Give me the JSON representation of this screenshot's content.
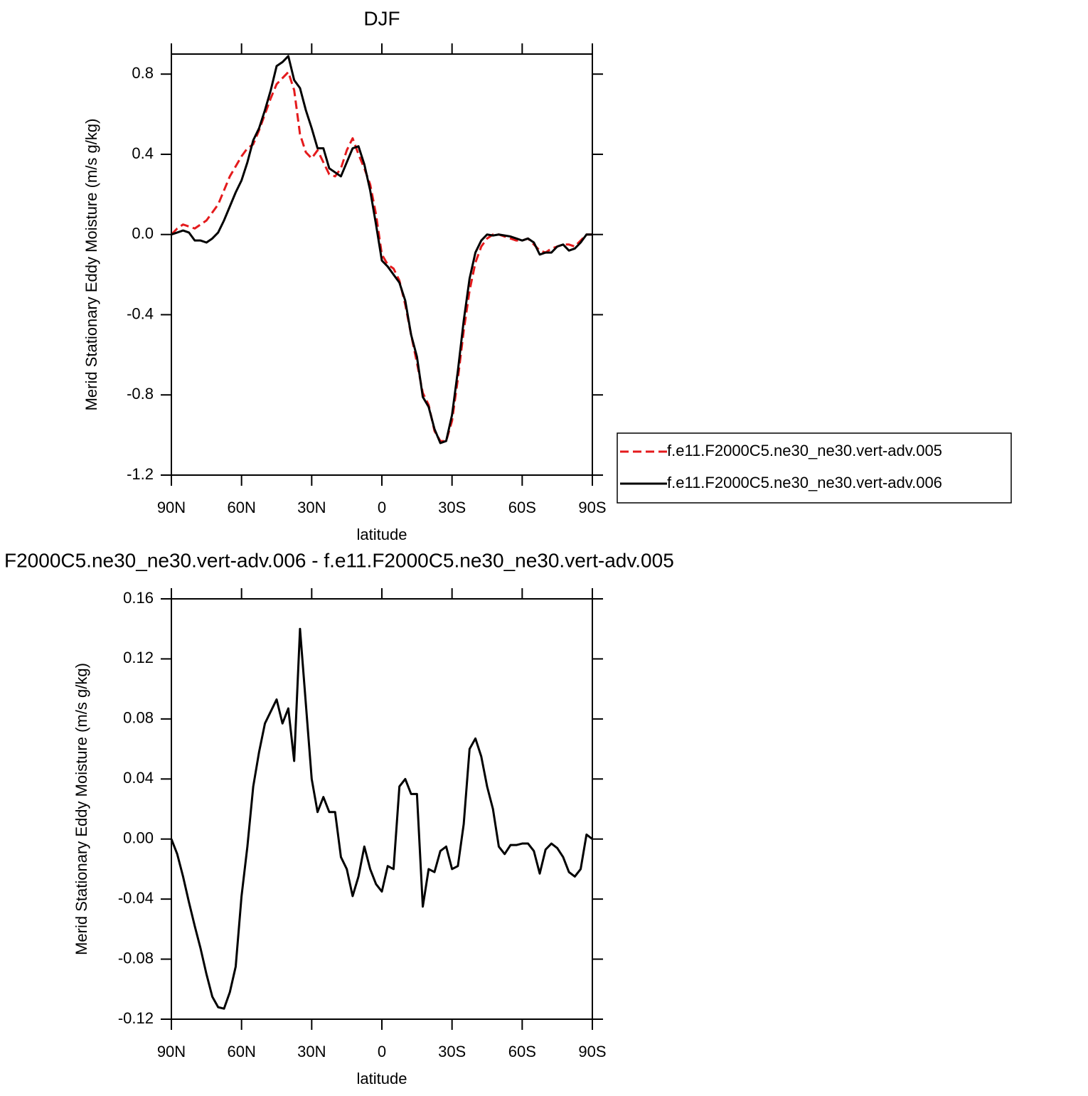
{
  "chart_data": [
    {
      "type": "line",
      "title": "DJF",
      "xlabel": "latitude",
      "ylabel": "Merid Stationary Eddy Moisture (m/s g/kg)",
      "legend": "right",
      "x": [
        90,
        87.5,
        85,
        82.5,
        80,
        77.5,
        75,
        72.5,
        70,
        67.5,
        65,
        62.5,
        60,
        57.5,
        55,
        52.5,
        50,
        47.5,
        45,
        42.5,
        40,
        37.5,
        35,
        32.5,
        30,
        27.5,
        25,
        22.5,
        20,
        17.5,
        15,
        12.5,
        10,
        7.5,
        5,
        2.5,
        0,
        -2.5,
        -5,
        -7.5,
        -10,
        -12.5,
        -15,
        -17.5,
        -20,
        -22.5,
        -25,
        -27.5,
        -30,
        -32.5,
        -35,
        -37.5,
        -40,
        -42.5,
        -45,
        -47.5,
        -50,
        -52.5,
        -55,
        -57.5,
        -60,
        -62.5,
        -65,
        -67.5,
        -70,
        -72.5,
        -75,
        -77.5,
        -80,
        -82.5,
        -85,
        -87.5,
        -90
      ],
      "series": [
        {
          "name": "f.e11.F2000C5.ne30_ne30.vert-adv.005",
          "color": "#e41a1c",
          "line_style": "dashed",
          "values": [
            0.0,
            0.03,
            0.05,
            0.04,
            0.03,
            0.05,
            0.07,
            0.11,
            0.15,
            0.22,
            0.29,
            0.34,
            0.39,
            0.43,
            0.45,
            0.52,
            0.6,
            0.68,
            0.75,
            0.78,
            0.81,
            0.72,
            0.5,
            0.41,
            0.38,
            0.42,
            0.36,
            0.3,
            0.29,
            0.33,
            0.42,
            0.48,
            0.4,
            0.33,
            0.25,
            0.1,
            -0.1,
            -0.15,
            -0.17,
            -0.23,
            -0.35,
            -0.5,
            -0.64,
            -0.79,
            -0.85,
            -0.98,
            -1.03,
            -1.03,
            -0.93,
            -0.72,
            -0.48,
            -0.28,
            -0.14,
            -0.06,
            -0.02,
            0.0,
            0.0,
            -0.01,
            -0.02,
            -0.03,
            -0.03,
            -0.02,
            -0.05,
            -0.08,
            -0.09,
            -0.07,
            -0.06,
            -0.05,
            -0.05,
            -0.06,
            -0.03,
            0.0,
            0.0
          ]
        },
        {
          "name": "f.e11.F2000C5.ne30_ne30.vert-adv.006",
          "color": "#000000",
          "line_style": "solid",
          "values": [
            0.0,
            0.01,
            0.02,
            0.01,
            -0.03,
            -0.03,
            -0.04,
            -0.02,
            0.01,
            0.07,
            0.14,
            0.21,
            0.27,
            0.36,
            0.47,
            0.53,
            0.62,
            0.72,
            0.84,
            0.86,
            0.89,
            0.77,
            0.73,
            0.62,
            0.53,
            0.43,
            0.43,
            0.33,
            0.31,
            0.29,
            0.36,
            0.43,
            0.44,
            0.35,
            0.22,
            0.05,
            -0.13,
            -0.16,
            -0.2,
            -0.24,
            -0.33,
            -0.5,
            -0.61,
            -0.81,
            -0.86,
            -0.97,
            -1.04,
            -1.03,
            -0.9,
            -0.68,
            -0.43,
            -0.22,
            -0.09,
            -0.03,
            0.0,
            -0.005,
            0.0,
            -0.005,
            -0.01,
            -0.02,
            -0.03,
            -0.02,
            -0.04,
            -0.1,
            -0.09,
            -0.09,
            -0.06,
            -0.05,
            -0.08,
            -0.07,
            -0.04,
            0.0,
            0.0
          ]
        }
      ],
      "xlim": [
        90,
        -90
      ],
      "xticks": [
        {
          "value": 90,
          "label": "90N"
        },
        {
          "value": 60,
          "label": "60N"
        },
        {
          "value": 30,
          "label": "30N"
        },
        0,
        {
          "value": -30,
          "label": "30S"
        },
        {
          "value": -60,
          "label": "60S"
        },
        {
          "value": -90,
          "label": "90S"
        }
      ],
      "ylim": [
        -1.2,
        0.9
      ],
      "yticks": [
        -1.2,
        -0.8,
        -0.4,
        {
          "value": 0,
          "label": "0.0"
        },
        0.4,
        0.8
      ]
    },
    {
      "type": "line",
      "title": "F2000C5.ne30_ne30.vert-adv.006 - f.e11.F2000C5.ne30_ne30.vert-adv.005",
      "xlabel": "latitude",
      "ylabel": "Merid Stationary Eddy Moisture (m/s g/kg)",
      "x": [
        90,
        87.5,
        85,
        82.5,
        80,
        77.5,
        75,
        72.5,
        70,
        67.5,
        65,
        62.5,
        60,
        57.5,
        55,
        52.5,
        50,
        47.5,
        45,
        42.5,
        40,
        37.5,
        35,
        32.5,
        30,
        27.5,
        25,
        22.5,
        20,
        17.5,
        15,
        12.5,
        10,
        7.5,
        5,
        2.5,
        0,
        -2.5,
        -5,
        -7.5,
        -10,
        -12.5,
        -15,
        -17.5,
        -20,
        -22.5,
        -25,
        -27.5,
        -30,
        -32.5,
        -35,
        -37.5,
        -40,
        -42.5,
        -45,
        -47.5,
        -50,
        -52.5,
        -55,
        -57.5,
        -60,
        -62.5,
        -65,
        -67.5,
        -70,
        -72.5,
        -75,
        -77.5,
        -80,
        -82.5,
        -85,
        -87.5,
        -90
      ],
      "series": [
        {
          "color": "#000000",
          "line_style": "solid",
          "values": [
            0.0,
            -0.01,
            -0.025,
            -0.042,
            -0.058,
            -0.073,
            -0.09,
            -0.105,
            -0.112,
            -0.113,
            -0.102,
            -0.085,
            -0.038,
            -0.005,
            0.035,
            0.058,
            0.077,
            0.085,
            0.093,
            0.077,
            0.087,
            0.052,
            0.14,
            0.09,
            0.04,
            0.018,
            0.028,
            0.018,
            0.018,
            -0.012,
            -0.02,
            -0.038,
            -0.025,
            -0.005,
            -0.02,
            -0.03,
            -0.035,
            -0.018,
            -0.02,
            0.035,
            0.04,
            0.03,
            0.03,
            -0.045,
            -0.02,
            -0.022,
            -0.008,
            -0.005,
            -0.02,
            -0.018,
            0.01,
            0.06,
            0.067,
            0.055,
            0.035,
            0.02,
            -0.005,
            -0.01,
            -0.004,
            -0.004,
            -0.003,
            -0.003,
            -0.008,
            -0.023,
            -0.007,
            -0.003,
            -0.006,
            -0.012,
            -0.022,
            -0.025,
            -0.02,
            0.003,
            0.0
          ]
        }
      ],
      "xlim": [
        90,
        -90
      ],
      "xticks": [
        {
          "value": 90,
          "label": "90N"
        },
        {
          "value": 60,
          "label": "60N"
        },
        {
          "value": 30,
          "label": "30N"
        },
        0,
        {
          "value": -30,
          "label": "30S"
        },
        {
          "value": -60,
          "label": "60S"
        },
        {
          "value": -90,
          "label": "90S"
        }
      ],
      "ylim": [
        -0.12,
        0.16
      ],
      "yticks": [
        -0.12,
        -0.08,
        -0.04,
        {
          "value": 0,
          "label": "0.00"
        },
        0.04,
        0.08,
        0.12,
        0.16
      ]
    }
  ]
}
